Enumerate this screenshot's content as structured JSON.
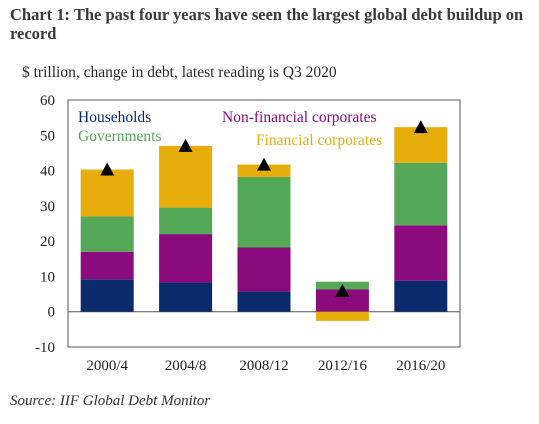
{
  "chart_data": {
    "type": "bar",
    "stacked": true,
    "title": "Chart 1: The past four years have seen the largest global debt buildup on record",
    "subtitle": "$ trillion, change in debt, latest reading is Q3 2020",
    "source": "Source: IIF Global Debt Monitor",
    "categories": [
      "2000/4",
      "2004/8",
      "2008/12",
      "2012/16",
      "2016/20"
    ],
    "ylim": [
      -10,
      60
    ],
    "yticks": [
      "60",
      "50",
      "40",
      "30",
      "20",
      "10",
      "0",
      "-10"
    ],
    "ytick_values": [
      60,
      50,
      40,
      30,
      20,
      10,
      0,
      -10
    ],
    "series": [
      {
        "name": "Households",
        "color": "#0b2a6b",
        "values": [
          9.2,
          8.3,
          5.7,
          0,
          8.8
        ]
      },
      {
        "name": "Non-financial corporates",
        "color": "#8b0b7c",
        "values": [
          7.8,
          13.7,
          12.5,
          6.3,
          15.7
        ]
      },
      {
        "name": "Governments",
        "color": "#55a857",
        "values": [
          10.0,
          7.5,
          20.0,
          2.2,
          17.7
        ]
      },
      {
        "name": "Financial corporates",
        "color": "#e6ad0c",
        "values": [
          13.3,
          17.5,
          3.5,
          -2.6,
          10.1
        ]
      }
    ],
    "total_markers": [
      40.3,
      47.0,
      41.7,
      5.9,
      52.3
    ],
    "marker_color": "#000000",
    "grid": false
  }
}
